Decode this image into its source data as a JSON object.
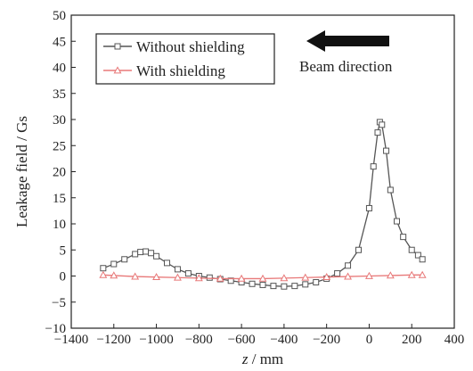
{
  "chart_data": {
    "type": "line",
    "xlabel_var": "z",
    "xlabel_unit": "/ mm",
    "ylabel": "Leakage field / Gs",
    "xlim": [
      -1400,
      400
    ],
    "ylim": [
      -10,
      50
    ],
    "x_ticks": [
      -1400,
      -1200,
      -1000,
      -800,
      -600,
      -400,
      -200,
      0,
      200,
      400
    ],
    "y_ticks": [
      -10,
      -5,
      0,
      5,
      10,
      15,
      20,
      25,
      30,
      35,
      40,
      45,
      50
    ],
    "x_tick_labels": [
      "−1400",
      "−1200",
      "−1000",
      "−800",
      "−600",
      "−400",
      "−200",
      "0",
      "200",
      "400"
    ],
    "y_tick_labels": [
      "−10",
      "−5",
      "0",
      "5",
      "10",
      "15",
      "20",
      "25",
      "30",
      "35",
      "40",
      "45",
      "50"
    ],
    "legend_position": "top-left",
    "annotation": "Beam direction",
    "annotation_arrow_direction": "left",
    "grid": false,
    "series": [
      {
        "name": "Without shielding",
        "marker": "square",
        "color": "#555555",
        "x": [
          -1250,
          -1200,
          -1150,
          -1100,
          -1075,
          -1050,
          -1025,
          -1000,
          -950,
          -900,
          -850,
          -800,
          -750,
          -700,
          -650,
          -600,
          -550,
          -500,
          -450,
          -400,
          -350,
          -300,
          -250,
          -200,
          -150,
          -100,
          -50,
          0,
          20,
          40,
          50,
          60,
          80,
          100,
          130,
          160,
          200,
          230,
          250
        ],
        "values": [
          1.5,
          2.3,
          3.2,
          4.2,
          4.6,
          4.7,
          4.4,
          3.8,
          2.5,
          1.3,
          0.5,
          0.0,
          -0.3,
          -0.6,
          -0.9,
          -1.2,
          -1.5,
          -1.7,
          -1.9,
          -2.0,
          -1.9,
          -1.6,
          -1.2,
          -0.5,
          0.5,
          2.0,
          5.0,
          13.0,
          21.0,
          27.5,
          29.5,
          29.0,
          24.0,
          16.5,
          10.5,
          7.5,
          5.0,
          4.0,
          3.2
        ]
      },
      {
        "name": "With shielding",
        "marker": "triangle",
        "color": "#e87878",
        "x": [
          -1250,
          -1200,
          -1100,
          -1000,
          -900,
          -800,
          -700,
          -600,
          -500,
          -400,
          -300,
          -200,
          -100,
          0,
          100,
          200,
          250
        ],
        "values": [
          0.2,
          0.1,
          -0.1,
          -0.2,
          -0.3,
          -0.4,
          -0.5,
          -0.5,
          -0.5,
          -0.4,
          -0.3,
          -0.2,
          -0.1,
          0.0,
          0.1,
          0.2,
          0.2
        ]
      }
    ]
  }
}
